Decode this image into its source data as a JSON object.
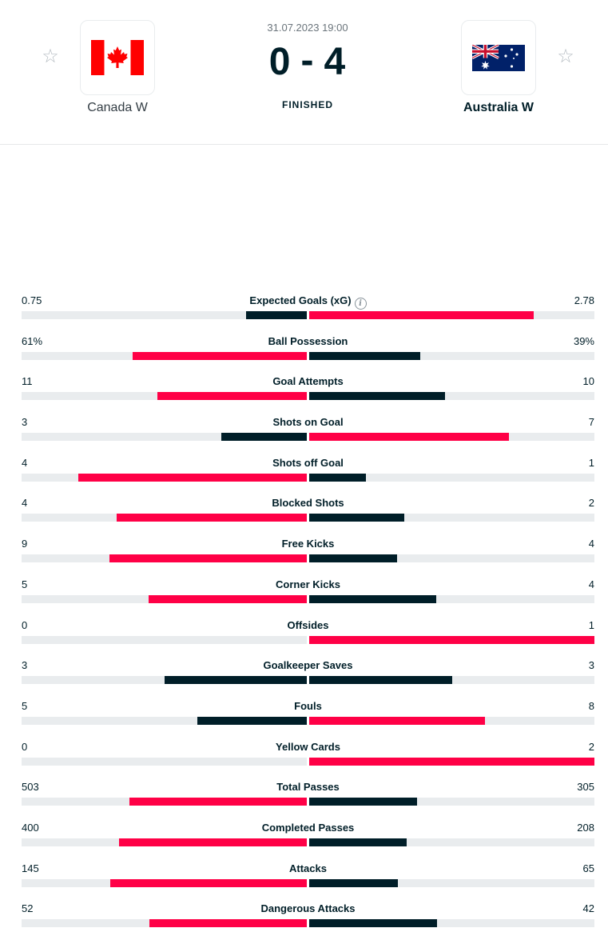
{
  "match": {
    "datetime": "31.07.2023 19:00",
    "score_home": "0",
    "score_sep": "-",
    "score_away": "4",
    "status": "FINISHED"
  },
  "home": {
    "name": "Canada W",
    "flag": "canada-flag",
    "favorite_icon": "☆"
  },
  "away": {
    "name": "Australia W",
    "flag": "australia-flag",
    "favorite_icon": "☆"
  },
  "colors": {
    "highlight": "#ff0046",
    "dark": "#001e28",
    "track": "#e9ecee"
  },
  "stats": [
    {
      "name": "Expected Goals (xG)",
      "home": "0.75",
      "away": "2.78",
      "home_val": 0.75,
      "away_val": 2.78,
      "info": true
    },
    {
      "name": "Ball Possession",
      "home": "61%",
      "away": "39%",
      "home_val": 61,
      "away_val": 39
    },
    {
      "name": "Goal Attempts",
      "home": "11",
      "away": "10",
      "home_val": 11,
      "away_val": 10
    },
    {
      "name": "Shots on Goal",
      "home": "3",
      "away": "7",
      "home_val": 3,
      "away_val": 7
    },
    {
      "name": "Shots off Goal",
      "home": "4",
      "away": "1",
      "home_val": 4,
      "away_val": 1
    },
    {
      "name": "Blocked Shots",
      "home": "4",
      "away": "2",
      "home_val": 4,
      "away_val": 2
    },
    {
      "name": "Free Kicks",
      "home": "9",
      "away": "4",
      "home_val": 9,
      "away_val": 4
    },
    {
      "name": "Corner Kicks",
      "home": "5",
      "away": "4",
      "home_val": 5,
      "away_val": 4
    },
    {
      "name": "Offsides",
      "home": "0",
      "away": "1",
      "home_val": 0,
      "away_val": 1
    },
    {
      "name": "Goalkeeper Saves",
      "home": "3",
      "away": "3",
      "home_val": 3,
      "away_val": 3
    },
    {
      "name": "Fouls",
      "home": "5",
      "away": "8",
      "home_val": 5,
      "away_val": 8
    },
    {
      "name": "Yellow Cards",
      "home": "0",
      "away": "2",
      "home_val": 0,
      "away_val": 2
    },
    {
      "name": "Total Passes",
      "home": "503",
      "away": "305",
      "home_val": 503,
      "away_val": 305
    },
    {
      "name": "Completed Passes",
      "home": "400",
      "away": "208",
      "home_val": 400,
      "away_val": 208
    },
    {
      "name": "Attacks",
      "home": "145",
      "away": "65",
      "home_val": 145,
      "away_val": 65
    },
    {
      "name": "Dangerous Attacks",
      "home": "52",
      "away": "42",
      "home_val": 52,
      "away_val": 42
    }
  ]
}
